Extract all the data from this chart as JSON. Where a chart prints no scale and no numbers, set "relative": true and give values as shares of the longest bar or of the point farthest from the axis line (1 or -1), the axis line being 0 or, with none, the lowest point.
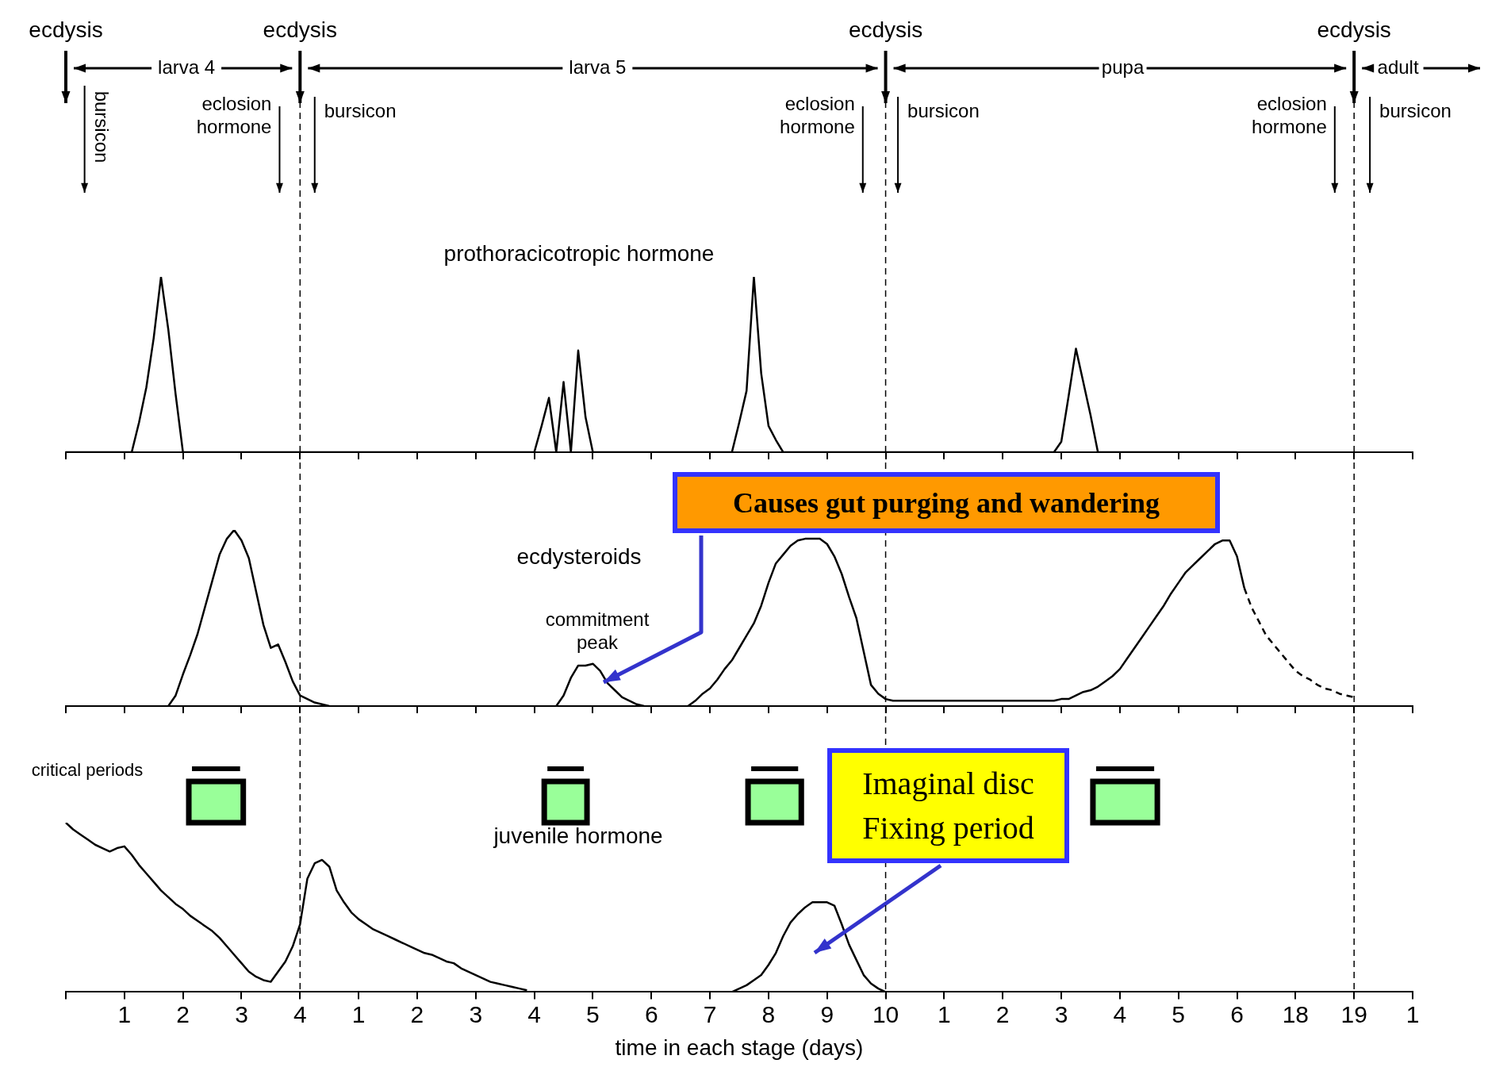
{
  "chart_data": [
    {
      "type": "line",
      "title": "prothoracicotropic hormone",
      "relative": true,
      "legend": false,
      "grid": false,
      "marker": "none",
      "tick_labels": false,
      "categories": [
        null,
        null,
        null,
        null,
        null,
        null,
        null,
        null,
        "1",
        null,
        null,
        null,
        null,
        null,
        null,
        null,
        "2",
        null,
        null,
        null,
        null,
        null,
        null,
        null,
        "3",
        null,
        null,
        null,
        null,
        null,
        null,
        null,
        "4",
        null,
        null,
        null,
        null,
        null,
        null,
        null,
        "1",
        null,
        null,
        null,
        null,
        null,
        null,
        null,
        "2",
        null,
        null,
        null,
        null,
        null,
        null,
        null,
        "3",
        null,
        null,
        null,
        null,
        null,
        null,
        null,
        "4",
        null,
        null,
        null,
        null,
        null,
        null,
        null,
        "5",
        null,
        null,
        null,
        null,
        null,
        null,
        null,
        "6",
        null,
        null,
        null,
        null,
        null,
        null,
        null,
        "7",
        null,
        null,
        null,
        null,
        null,
        null,
        null,
        "8",
        null,
        null,
        null,
        null,
        null,
        null,
        null,
        "9",
        null,
        null,
        null,
        null,
        null,
        null,
        null,
        "10",
        null,
        null,
        null,
        null,
        null,
        null,
        null,
        "1",
        null,
        null,
        null,
        null,
        null,
        null,
        null,
        "2",
        null,
        null,
        null,
        null,
        null,
        null,
        null,
        "3",
        null,
        null,
        null,
        null,
        null,
        null,
        null,
        "4",
        null,
        null,
        null,
        null,
        null,
        null,
        null,
        "5",
        null,
        null,
        null,
        null,
        null,
        null,
        null,
        "6",
        null,
        null,
        null,
        null,
        null,
        null,
        null,
        "18",
        null,
        null,
        null,
        null,
        null,
        null,
        null,
        "19",
        null,
        null,
        null,
        null,
        null,
        null,
        null,
        "1"
      ],
      "series": [
        {
          "color": "#000000",
          "values": [
            0,
            0,
            0,
            0,
            0,
            0,
            0,
            0,
            0,
            0,
            0.17,
            0.37,
            0.65,
            1,
            0.7,
            0.33,
            0,
            0,
            0,
            0,
            0,
            0,
            0,
            0,
            0,
            0,
            0,
            0,
            0,
            0,
            0,
            0,
            0,
            0,
            0,
            0,
            0,
            0,
            0,
            0,
            0,
            0,
            0,
            0,
            0,
            0,
            0,
            0,
            0,
            0,
            0,
            0,
            0,
            0,
            0,
            0,
            0,
            0,
            0,
            0,
            0,
            0,
            0,
            0,
            0,
            0.15,
            0.31,
            0,
            0.4,
            0,
            0.58,
            0.2,
            0,
            0,
            0,
            0,
            0,
            0,
            0,
            0,
            0,
            0,
            0,
            0,
            0,
            0,
            0,
            0,
            0,
            0,
            0,
            0,
            0.17,
            0.35,
            1,
            0.45,
            0.15,
            0.07,
            0,
            0,
            0,
            0,
            0,
            0,
            0,
            0,
            0,
            0,
            0,
            0,
            0,
            0,
            0,
            0,
            0,
            0,
            0,
            0,
            0,
            0,
            0,
            0,
            0,
            0,
            0,
            0,
            0,
            0,
            0,
            0,
            0,
            0,
            0,
            0,
            0,
            0,
            0.06,
            0.32,
            0.59,
            0.4,
            0.21,
            0,
            0,
            0,
            0,
            0,
            0,
            0,
            0,
            0,
            0,
            0,
            0,
            0,
            0,
            0,
            0,
            0,
            0,
            0,
            0,
            null,
            null,
            null,
            null,
            null,
            null,
            null,
            null,
            null,
            null,
            null,
            null,
            null,
            null,
            null,
            null,
            null,
            null,
            null,
            null,
            null,
            null,
            null,
            null
          ]
        }
      ],
      "annotations": [
        "ecdysis",
        "ecdysis",
        "ecdysis",
        "ecdysis",
        "larva 4",
        "larva 5",
        "pupa",
        "adult",
        "bursicon",
        "bursicon",
        "bursicon",
        "bursicon",
        "eclosion\nhormone",
        "eclosion\nhormone",
        "eclosion\nhormone"
      ]
    },
    {
      "type": "line",
      "title": "ecdysteroids",
      "relative": true,
      "legend": false,
      "grid": false,
      "marker": "none",
      "tick_labels": false,
      "categories": [
        null,
        null,
        null,
        null,
        null,
        null,
        null,
        null,
        "1",
        null,
        null,
        null,
        null,
        null,
        null,
        null,
        "2",
        null,
        null,
        null,
        null,
        null,
        null,
        null,
        "3",
        null,
        null,
        null,
        null,
        null,
        null,
        null,
        "4",
        null,
        null,
        null,
        null,
        null,
        null,
        null,
        "1",
        null,
        null,
        null,
        null,
        null,
        null,
        null,
        "2",
        null,
        null,
        null,
        null,
        null,
        null,
        null,
        "3",
        null,
        null,
        null,
        null,
        null,
        null,
        null,
        "4",
        null,
        null,
        null,
        null,
        null,
        null,
        null,
        "5",
        null,
        null,
        null,
        null,
        null,
        null,
        null,
        "6",
        null,
        null,
        null,
        null,
        null,
        null,
        null,
        "7",
        null,
        null,
        null,
        null,
        null,
        null,
        null,
        "8",
        null,
        null,
        null,
        null,
        null,
        null,
        null,
        "9",
        null,
        null,
        null,
        null,
        null,
        null,
        null,
        "10",
        null,
        null,
        null,
        null,
        null,
        null,
        null,
        "1",
        null,
        null,
        null,
        null,
        null,
        null,
        null,
        "2",
        null,
        null,
        null,
        null,
        null,
        null,
        null,
        "3",
        null,
        null,
        null,
        null,
        null,
        null,
        null,
        "4",
        null,
        null,
        null,
        null,
        null,
        null,
        null,
        "5",
        null,
        null,
        null,
        null,
        null,
        null,
        null,
        "6",
        null,
        null,
        null,
        null,
        null,
        null,
        null,
        "18",
        null,
        null,
        null,
        null,
        null,
        null,
        null,
        "19",
        null,
        null,
        null,
        null,
        null,
        null,
        null,
        "1"
      ],
      "series": [
        {
          "color": "#000000",
          "values": [
            null,
            null,
            null,
            null,
            null,
            null,
            null,
            null,
            null,
            null,
            null,
            null,
            null,
            null,
            0,
            0.06,
            0.18,
            0.29,
            0.41,
            0.56,
            0.71,
            0.86,
            0.95,
            1,
            0.94,
            0.84,
            0.65,
            0.46,
            0.33,
            0.35,
            0.25,
            0.14,
            0.06,
            0.04,
            0.02,
            0.01,
            0,
            null,
            null,
            null,
            null,
            null,
            null,
            null,
            null,
            null,
            null,
            null,
            null,
            null,
            null,
            null,
            null,
            null,
            null,
            null,
            null,
            null,
            null,
            null,
            null,
            null,
            null,
            null,
            null,
            null,
            null,
            0,
            0.06,
            0.16,
            0.23,
            0.23,
            0.24,
            0.2,
            0.13,
            0.09,
            0.05,
            0.03,
            0.01,
            0,
            null,
            null,
            null,
            null,
            null,
            0,
            0.03,
            0.07,
            0.1,
            0.15,
            0.21,
            0.26,
            0.33,
            0.4,
            0.47,
            0.57,
            0.7,
            0.81,
            0.86,
            0.91,
            0.94,
            0.95,
            0.95,
            0.95,
            0.92,
            0.85,
            0.75,
            0.62,
            0.5,
            0.31,
            0.12,
            0.07,
            0.04,
            0.03,
            0.03,
            0.03,
            0.03,
            0.03,
            0.03,
            0.03,
            0.03,
            0.03,
            0.03,
            0.03,
            0.03,
            0.03,
            0.03,
            0.03,
            0.03,
            0.03,
            0.03,
            0.03,
            0.03,
            0.03,
            0.03,
            0.03,
            0.04,
            0.04,
            0.06,
            0.08,
            0.09,
            0.11,
            0.14,
            0.17,
            0.21,
            0.27,
            0.33,
            0.39,
            0.45,
            0.51,
            0.57,
            0.64,
            0.7,
            0.76,
            0.8,
            0.84,
            0.88,
            0.92,
            0.94,
            0.94,
            0.85,
            0.67,
            null,
            null,
            null,
            null,
            null,
            null,
            null,
            null,
            null,
            null,
            null,
            null,
            null,
            null,
            null,
            null,
            null,
            null,
            null,
            null,
            null,
            null,
            null
          ]
        },
        {
          "color": "#000000",
          "line_style": "dashed",
          "values": [
            null,
            null,
            null,
            null,
            null,
            null,
            null,
            null,
            null,
            null,
            null,
            null,
            null,
            null,
            null,
            null,
            null,
            null,
            null,
            null,
            null,
            null,
            null,
            null,
            null,
            null,
            null,
            null,
            null,
            null,
            null,
            null,
            null,
            null,
            null,
            null,
            null,
            null,
            null,
            null,
            null,
            null,
            null,
            null,
            null,
            null,
            null,
            null,
            null,
            null,
            null,
            null,
            null,
            null,
            null,
            null,
            null,
            null,
            null,
            null,
            null,
            null,
            null,
            null,
            null,
            null,
            null,
            null,
            null,
            null,
            null,
            null,
            null,
            null,
            null,
            null,
            null,
            null,
            null,
            null,
            null,
            null,
            null,
            null,
            null,
            null,
            null,
            null,
            null,
            null,
            null,
            null,
            null,
            null,
            null,
            null,
            null,
            null,
            null,
            null,
            null,
            null,
            null,
            null,
            null,
            null,
            null,
            null,
            null,
            null,
            null,
            null,
            null,
            null,
            null,
            null,
            null,
            null,
            null,
            null,
            null,
            null,
            null,
            null,
            null,
            null,
            null,
            null,
            null,
            null,
            null,
            null,
            null,
            null,
            null,
            null,
            null,
            null,
            null,
            null,
            null,
            null,
            null,
            null,
            null,
            null,
            null,
            null,
            null,
            null,
            null,
            null,
            null,
            null,
            null,
            null,
            null,
            null,
            null,
            null,
            null,
            0.67,
            0.56,
            0.48,
            0.4,
            0.35,
            0.3,
            0.25,
            0.2,
            0.17,
            0.15,
            0.12,
            0.1,
            0.09,
            0.07,
            0.06,
            0.05,
            null,
            null,
            null,
            null,
            null,
            null,
            null,
            null
          ]
        }
      ],
      "annotations": [
        "commitment\npeak",
        "Causes gut purging and wandering"
      ]
    },
    {
      "type": "line",
      "title": "juvenile hormone",
      "xlabel": "time in each stage (days)",
      "relative": true,
      "legend": false,
      "grid": false,
      "marker": "none",
      "categories": [
        null,
        null,
        null,
        null,
        null,
        null,
        null,
        null,
        "1",
        null,
        null,
        null,
        null,
        null,
        null,
        null,
        "2",
        null,
        null,
        null,
        null,
        null,
        null,
        null,
        "3",
        null,
        null,
        null,
        null,
        null,
        null,
        null,
        "4",
        null,
        null,
        null,
        null,
        null,
        null,
        null,
        "1",
        null,
        null,
        null,
        null,
        null,
        null,
        null,
        "2",
        null,
        null,
        null,
        null,
        null,
        null,
        null,
        "3",
        null,
        null,
        null,
        null,
        null,
        null,
        null,
        "4",
        null,
        null,
        null,
        null,
        null,
        null,
        null,
        "5",
        null,
        null,
        null,
        null,
        null,
        null,
        null,
        "6",
        null,
        null,
        null,
        null,
        null,
        null,
        null,
        "7",
        null,
        null,
        null,
        null,
        null,
        null,
        null,
        "8",
        null,
        null,
        null,
        null,
        null,
        null,
        null,
        "9",
        null,
        null,
        null,
        null,
        null,
        null,
        null,
        "10",
        null,
        null,
        null,
        null,
        null,
        null,
        null,
        "1",
        null,
        null,
        null,
        null,
        null,
        null,
        null,
        "2",
        null,
        null,
        null,
        null,
        null,
        null,
        null,
        "3",
        null,
        null,
        null,
        null,
        null,
        null,
        null,
        "4",
        null,
        null,
        null,
        null,
        null,
        null,
        null,
        "5",
        null,
        null,
        null,
        null,
        null,
        null,
        null,
        "6",
        null,
        null,
        null,
        null,
        null,
        null,
        null,
        "18",
        null,
        null,
        null,
        null,
        null,
        null,
        null,
        "19",
        null,
        null,
        null,
        null,
        null,
        null,
        null,
        "1"
      ],
      "series": [
        {
          "color": "#000000",
          "values": [
            1,
            0.96,
            0.93,
            0.9,
            0.87,
            0.85,
            0.83,
            0.85,
            0.86,
            0.81,
            0.75,
            0.7,
            0.65,
            0.6,
            0.56,
            0.52,
            0.49,
            0.45,
            0.42,
            0.39,
            0.36,
            0.32,
            0.27,
            0.22,
            0.17,
            0.12,
            0.09,
            0.07,
            0.06,
            0.12,
            0.18,
            0.27,
            0.4,
            0.67,
            0.76,
            0.78,
            0.74,
            0.6,
            0.53,
            0.47,
            0.43,
            0.4,
            0.37,
            0.35,
            0.33,
            0.31,
            0.29,
            0.27,
            0.25,
            0.23,
            0.22,
            0.2,
            0.18,
            0.17,
            0.14,
            0.12,
            0.1,
            0.08,
            0.06,
            0.05,
            0.04,
            0.03,
            0.02,
            0.01,
            null,
            null,
            null,
            null,
            null,
            null,
            null,
            null,
            null,
            null,
            null,
            null,
            null,
            null,
            null,
            null,
            null,
            null,
            null,
            null,
            null,
            null,
            null,
            null,
            null,
            null,
            null,
            0,
            0.02,
            0.04,
            0.07,
            0.1,
            0.16,
            0.23,
            0.33,
            0.41,
            0.46,
            0.5,
            0.53,
            0.53,
            0.53,
            0.51,
            0.4,
            0.28,
            0.19,
            0.1,
            0.05,
            0.02,
            0,
            null,
            null,
            null,
            null,
            null,
            null,
            null,
            null,
            null,
            null,
            null,
            null,
            null,
            null,
            null,
            null,
            null,
            null,
            null,
            null,
            null,
            null,
            null,
            null,
            null,
            null,
            null,
            null,
            null,
            null,
            null,
            null,
            null,
            null,
            null,
            null,
            null,
            null,
            null,
            null,
            null,
            null,
            null,
            null,
            null,
            null,
            null,
            null,
            null,
            null,
            null,
            null,
            null,
            null,
            null,
            null,
            null,
            null,
            null,
            null,
            null,
            null,
            null,
            null,
            null,
            null,
            null,
            null,
            null,
            null,
            null,
            null
          ]
        }
      ],
      "annotations": [
        "critical periods",
        "Imaginal disc\nFixing period"
      ]
    }
  ]
}
